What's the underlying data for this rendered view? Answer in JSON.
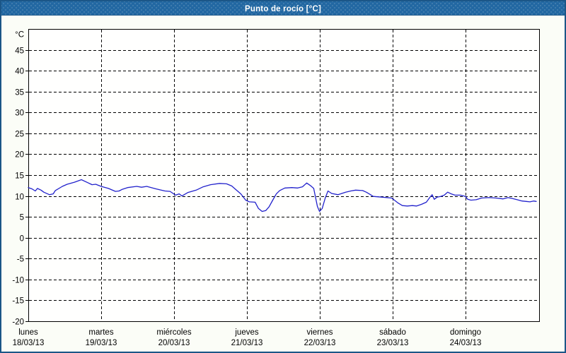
{
  "window": {
    "title": "Punto de rocío [°C]"
  },
  "colors": {
    "titlebar_bg": "#2268a2",
    "window_border": "#1b5687",
    "content_bg": "#fbfdf7",
    "plot_bg": "#fffffe",
    "grid": "#000000",
    "line": "#2222cc",
    "title_text": "#ffffff",
    "axis_text": "#000000"
  },
  "chart_data": {
    "type": "line",
    "title": "Punto de rocío [°C]",
    "xlabel": "",
    "ylabel": "°C",
    "ylim": [
      -20,
      50
    ],
    "xlim_hours": [
      0,
      168
    ],
    "yticks": [
      45,
      40,
      35,
      30,
      25,
      20,
      15,
      10,
      5,
      0,
      -5,
      -10,
      -15,
      -20
    ],
    "grid": "dashed-both-axes",
    "legend_position": "none",
    "x_day_labels": [
      {
        "name": "lunes",
        "date": "18/03/13"
      },
      {
        "name": "martes",
        "date": "19/03/13"
      },
      {
        "name": "miércoles",
        "date": "20/03/13"
      },
      {
        "name": "jueves",
        "date": "21/03/13"
      },
      {
        "name": "viernes",
        "date": "22/03/13"
      },
      {
        "name": "sábado",
        "date": "23/03/13"
      },
      {
        "name": "domingo",
        "date": "24/03/13"
      }
    ],
    "series": [
      {
        "name": "Punto de rocío",
        "color": "#2222cc",
        "x_unit": "hours since Monday 00:00",
        "y_unit": "°C",
        "points": [
          [
            0,
            12.0
          ],
          [
            1.2,
            11.7
          ],
          [
            2.3,
            11.2
          ],
          [
            3,
            11.8
          ],
          [
            4.2,
            11.4
          ],
          [
            5.1,
            10.9
          ],
          [
            7,
            10.3
          ],
          [
            8.2,
            10.5
          ],
          [
            8.9,
            11.3
          ],
          [
            11.2,
            12.3
          ],
          [
            12.8,
            12.8
          ],
          [
            15.2,
            13.3
          ],
          [
            17.5,
            13.9
          ],
          [
            19.8,
            13.1
          ],
          [
            21,
            12.7
          ],
          [
            22.2,
            12.8
          ],
          [
            24,
            12.3
          ],
          [
            26.4,
            11.8
          ],
          [
            28.7,
            11.1
          ],
          [
            29.9,
            11.2
          ],
          [
            31,
            11.6
          ],
          [
            32.7,
            12.0
          ],
          [
            35.7,
            12.3
          ],
          [
            37.3,
            12.1
          ],
          [
            39,
            12.3
          ],
          [
            42,
            11.7
          ],
          [
            45,
            11.2
          ],
          [
            46.7,
            11.1
          ],
          [
            48.5,
            10.2
          ],
          [
            49.7,
            10.5
          ],
          [
            50.6,
            10.0
          ],
          [
            52.5,
            10.8
          ],
          [
            55.3,
            11.4
          ],
          [
            57.6,
            12.2
          ],
          [
            60,
            12.7
          ],
          [
            63,
            13.0
          ],
          [
            65.3,
            12.9
          ],
          [
            67,
            12.4
          ],
          [
            68.4,
            11.5
          ],
          [
            70,
            10.5
          ],
          [
            71.6,
            9.0
          ],
          [
            72.8,
            8.6
          ],
          [
            74.7,
            8.5
          ],
          [
            75.8,
            7.0
          ],
          [
            77,
            6.3
          ],
          [
            78.2,
            6.5
          ],
          [
            79.3,
            7.4
          ],
          [
            80.5,
            9.0
          ],
          [
            81.7,
            10.5
          ],
          [
            82.8,
            11.3
          ],
          [
            84.5,
            11.9
          ],
          [
            86.8,
            12.0
          ],
          [
            88.7,
            11.9
          ],
          [
            90.3,
            12.2
          ],
          [
            91.7,
            13.1
          ],
          [
            92.9,
            12.5
          ],
          [
            94,
            11.8
          ],
          [
            94.5,
            10.0
          ],
          [
            95.2,
            7.5
          ],
          [
            95.9,
            6.3
          ],
          [
            96.8,
            7.0
          ],
          [
            97.8,
            9.5
          ],
          [
            98.7,
            11.2
          ],
          [
            99.9,
            10.6
          ],
          [
            102,
            10.3
          ],
          [
            104.5,
            10.9
          ],
          [
            106.2,
            11.2
          ],
          [
            107.8,
            11.4
          ],
          [
            110.1,
            11.3
          ],
          [
            111.3,
            10.9
          ],
          [
            112.5,
            10.4
          ],
          [
            113.6,
            9.9
          ],
          [
            116.7,
            9.7
          ],
          [
            119.7,
            9.5
          ],
          [
            121.8,
            8.3
          ],
          [
            123.2,
            7.7
          ],
          [
            124.8,
            7.6
          ],
          [
            126.5,
            7.7
          ],
          [
            127.9,
            7.6
          ],
          [
            129.5,
            8.0
          ],
          [
            131.1,
            8.5
          ],
          [
            132.3,
            9.7
          ],
          [
            133,
            10.3
          ],
          [
            133.7,
            9.2
          ],
          [
            134.6,
            9.7
          ],
          [
            135.8,
            9.9
          ],
          [
            137,
            10.2
          ],
          [
            138.1,
            10.9
          ],
          [
            139.3,
            10.5
          ],
          [
            140.5,
            10.2
          ],
          [
            142.3,
            10.2
          ],
          [
            144,
            9.9
          ],
          [
            144.7,
            9.2
          ],
          [
            145.8,
            9.0
          ],
          [
            147.5,
            9.1
          ],
          [
            149.3,
            9.5
          ],
          [
            151.7,
            9.6
          ],
          [
            154,
            9.5
          ],
          [
            156.3,
            9.3
          ],
          [
            158,
            9.6
          ],
          [
            159.4,
            9.4
          ],
          [
            161,
            9.1
          ],
          [
            162.6,
            8.8
          ],
          [
            164,
            8.7
          ],
          [
            165.2,
            8.6
          ],
          [
            166.4,
            8.8
          ],
          [
            167.3,
            8.7
          ]
        ]
      }
    ]
  }
}
